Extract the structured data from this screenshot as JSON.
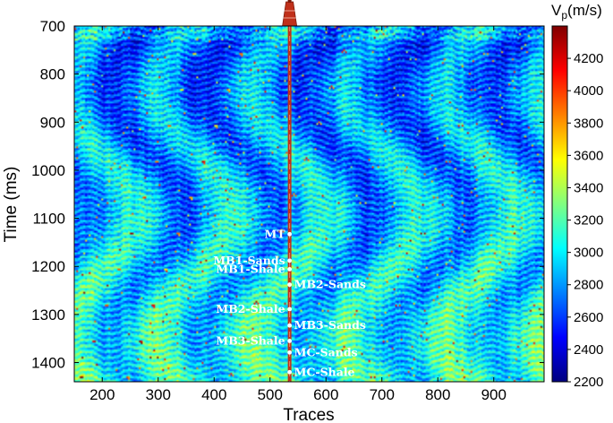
{
  "chart_data": {
    "type": "heatmap",
    "xlabel": "Traces",
    "ylabel": "Time (ms)",
    "xlim": [
      150,
      990
    ],
    "ylim": [
      700,
      1440
    ],
    "y_inverted": true,
    "x_ticks": [
      200,
      300,
      400,
      500,
      600,
      700,
      800,
      900
    ],
    "y_ticks": [
      700,
      800,
      900,
      1000,
      1100,
      1200,
      1300,
      1400
    ],
    "colorbar": {
      "title_main": "V",
      "title_sub": "p",
      "title_unit": "(m/s)",
      "range": [
        2200,
        4400
      ],
      "ticks": [
        2200,
        2400,
        2600,
        2800,
        3000,
        3200,
        3400,
        3600,
        3800,
        4000,
        4200
      ],
      "colormap": "jet",
      "colors": [
        "#00007f",
        "#0000ff",
        "#0080ff",
        "#00ffff",
        "#80ff80",
        "#ffff00",
        "#ff8000",
        "#ff0000",
        "#7f0000"
      ]
    },
    "well": {
      "trace": 535,
      "color": "#c0301a",
      "derrick_color": "#c0301a"
    },
    "horizons": [
      {
        "name": "MT",
        "trace": 535,
        "time": 1133,
        "side": "left"
      },
      {
        "name": "MB1-Sands",
        "trace": 535,
        "time": 1188,
        "side": "left"
      },
      {
        "name": "MB1-Shale",
        "trace": 535,
        "time": 1206,
        "side": "left"
      },
      {
        "name": "MB2-Sands",
        "trace": 535,
        "time": 1238,
        "side": "right"
      },
      {
        "name": "MB2-Shale",
        "trace": 535,
        "time": 1289,
        "side": "left"
      },
      {
        "name": "MB3-Sands",
        "trace": 535,
        "time": 1323,
        "side": "right"
      },
      {
        "name": "MB3-Shale",
        "trace": 535,
        "time": 1355,
        "side": "left"
      },
      {
        "name": "MC-Sands",
        "trace": 535,
        "time": 1379,
        "side": "right"
      },
      {
        "name": "MC-Shale",
        "trace": 535,
        "time": 1420,
        "side": "right"
      }
    ]
  }
}
